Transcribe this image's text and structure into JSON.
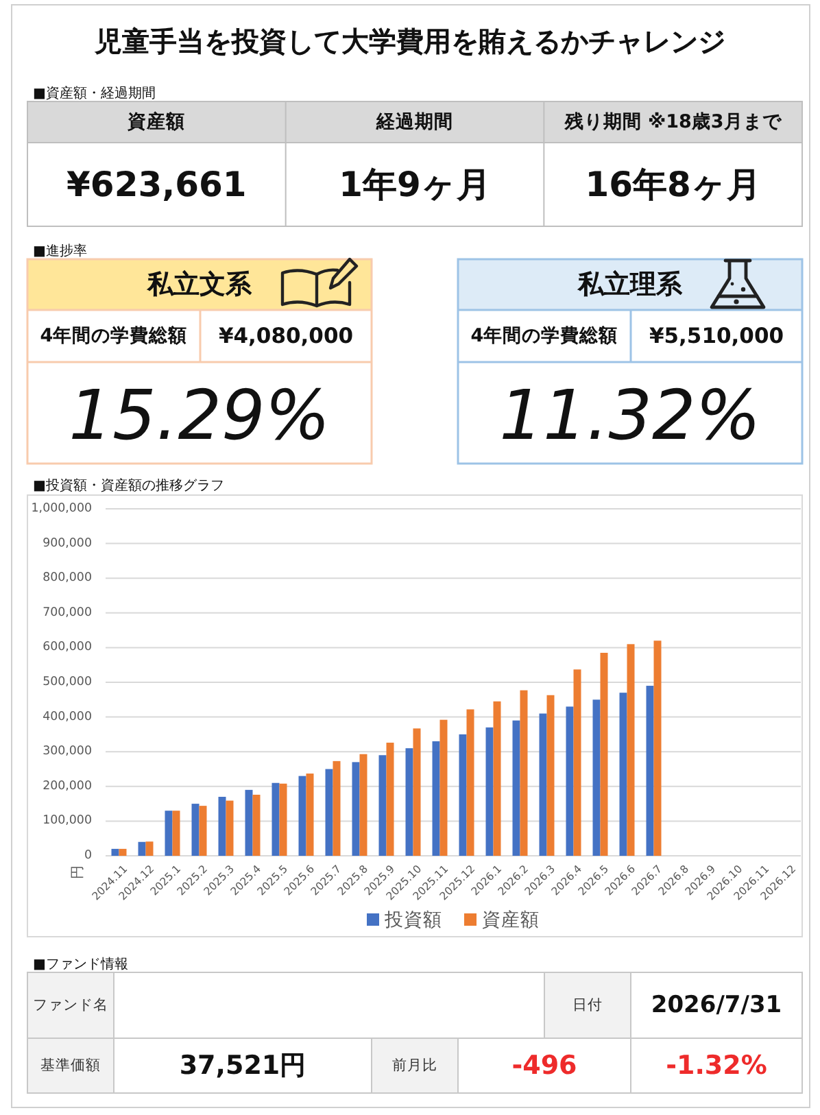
{
  "chart_data": [
    {
      "type": "other",
      "title": "児童手当を投資して大学費用を賄えるかチャレンジ",
      "subtitle": "■資産額・経過期間",
      "annotations": [
        "資産額",
        "経過期間",
        "残り期間 ※18歳3月まで",
        "¥623,661",
        "1年9ヶ月",
        "16年8ヶ月"
      ]
    },
    {
      "type": "other",
      "title": "■進捗率",
      "annotations": [
        "私立文系",
        "4年間の学費総額",
        "¥4,080,000",
        "15.29%",
        "私立理系",
        "4年間の学費総額",
        "¥5,510,000",
        "11.32%"
      ]
    },
    {
      "type": "bar",
      "title": "■投資額・資産額の推移グラフ",
      "ylabel": "円",
      "categories": [
        "2024.11",
        "2024.12",
        "2025.1",
        "2025.2",
        "2025.3",
        "2025.4",
        "2025.5",
        "2025.6",
        "2025.7",
        "2025.8",
        "2025.9",
        "2025.10",
        "2025.11",
        "2025.12",
        "2026.1",
        "2026.2",
        "2026.3",
        "2026.4",
        "2026.5",
        "2026.6",
        "2026.7",
        "2026.8",
        "2026.9",
        "2026.10",
        "2026.11",
        "2026.12"
      ],
      "series": [
        {
          "name": "投資額",
          "color": "#4472c4",
          "values": [
            20000,
            40000,
            130000,
            150000,
            170000,
            190000,
            210000,
            230000,
            250000,
            270000,
            290000,
            310000,
            330000,
            350000,
            370000,
            390000,
            410000,
            430000,
            450000,
            470000,
            490000,
            null,
            null,
            null,
            null,
            null
          ]
        },
        {
          "name": "資産額",
          "color": "#ed7d31",
          "values": [
            20000,
            41000,
            130000,
            144000,
            159000,
            176000,
            208000,
            237000,
            273000,
            293000,
            326000,
            367000,
            392000,
            422000,
            445000,
            477000,
            463000,
            537000,
            585000,
            610000,
            620000,
            null,
            null,
            null,
            null,
            null
          ]
        }
      ],
      "ylim": [
        0,
        1000000
      ],
      "yticks": [
        0,
        {
          "value": 100000,
          "label": "100,000"
        },
        {
          "value": 200000,
          "label": "200,000"
        },
        {
          "value": 300000,
          "label": "300,000"
        },
        {
          "value": 400000,
          "label": "400,000"
        },
        {
          "value": 500000,
          "label": "500,000"
        },
        {
          "value": 600000,
          "label": "600,000"
        },
        {
          "value": 700000,
          "label": "700,000"
        },
        {
          "value": 800000,
          "label": "800,000"
        },
        {
          "value": 900000,
          "label": "900,000"
        },
        {
          "value": 1000000,
          "label": "1,000,000"
        }
      ],
      "grid": "y",
      "legend": "bottom"
    },
    {
      "type": "other",
      "title": "■ファンド情報",
      "annotations": [
        "ファンド名",
        "日付",
        "2026/7/31",
        "基準価額",
        "37,521円",
        "前月比",
        "-496",
        "-1.32%"
      ]
    }
  ]
}
